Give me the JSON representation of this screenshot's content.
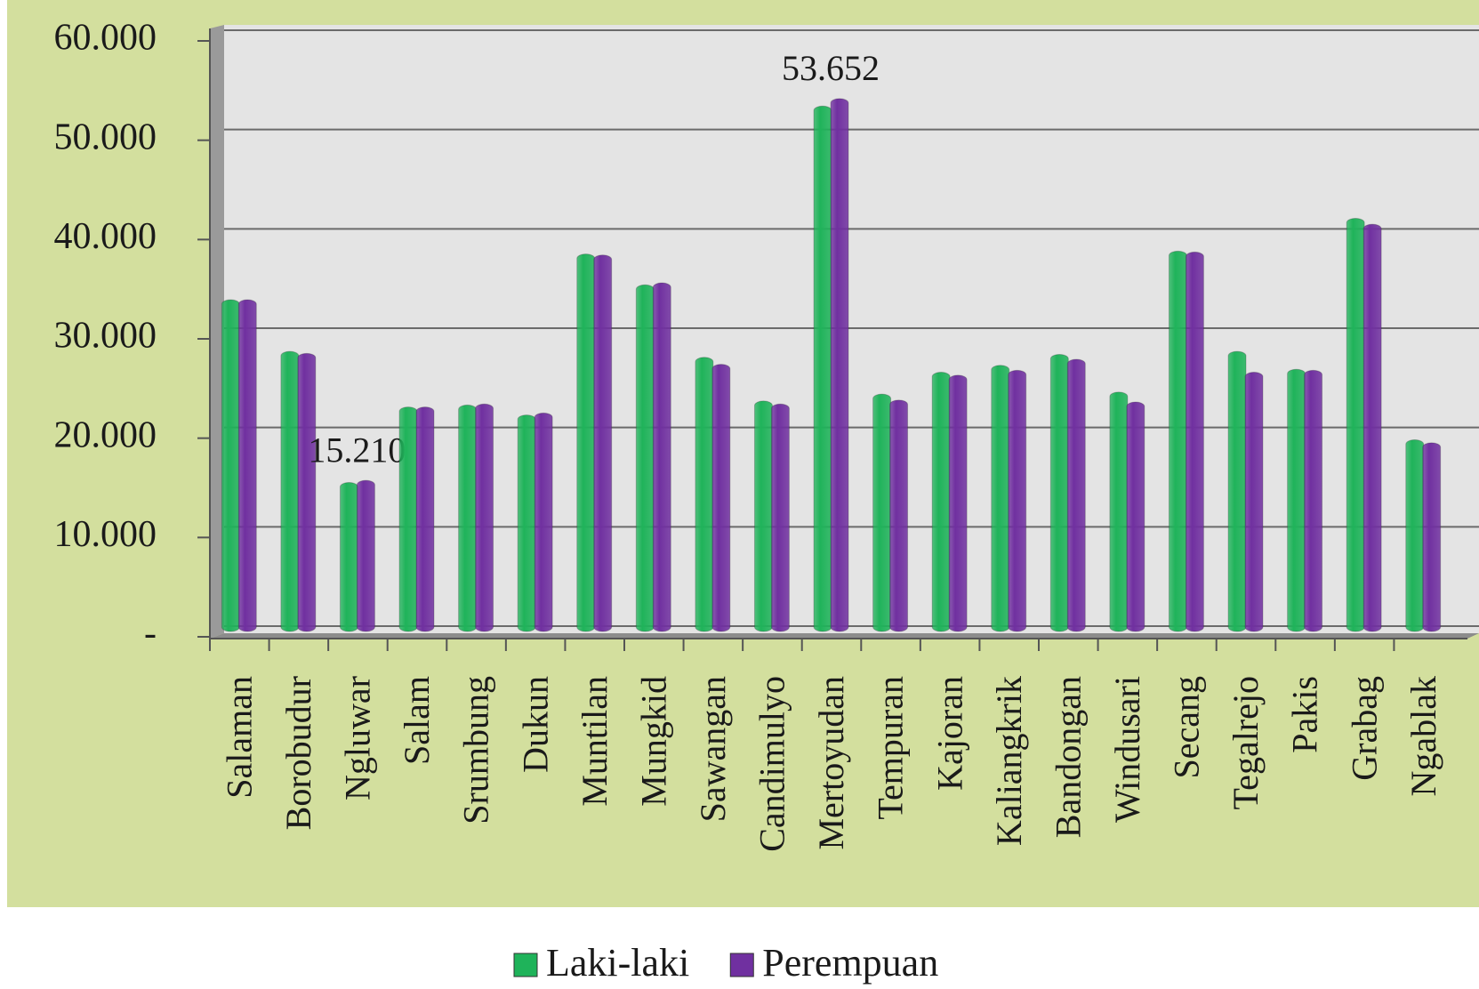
{
  "chart_data": {
    "type": "bar",
    "categories": [
      "Salaman",
      "Borobudur",
      "Ngluwar",
      "Salam",
      "Srumbung",
      "Dukun",
      "Muntilan",
      "Mungkid",
      "Sawangan",
      "Candimulyo",
      "Mertoyudan",
      "Tempuran",
      "Kajoran",
      "Kaliangkrik",
      "Bandongan",
      "Windusari",
      "Secang",
      "Tegalrejo",
      "Pakis",
      "Grabag",
      "Ngablak"
    ],
    "series": [
      {
        "name": "Laki-laki",
        "color": "#1fb35a",
        "values": [
          33400,
          28200,
          15000,
          22600,
          22800,
          21800,
          38000,
          34900,
          27600,
          23200,
          52900,
          23900,
          26100,
          26800,
          27900,
          24100,
          38300,
          28200,
          26400,
          41600,
          19300
        ],
        "value_labels": [
          null,
          null,
          null,
          null,
          null,
          null,
          null,
          null,
          null,
          null,
          null,
          null,
          null,
          null,
          null,
          null,
          null,
          null,
          null,
          null,
          null
        ]
      },
      {
        "name": "Perempuan",
        "color": "#7030a0",
        "values": [
          33400,
          28000,
          15210,
          22600,
          22900,
          22000,
          37900,
          35100,
          26900,
          22900,
          53652,
          23300,
          25800,
          26300,
          27400,
          23100,
          38200,
          26100,
          26300,
          41000,
          19000
        ],
        "value_labels": [
          null,
          null,
          "15.210",
          null,
          null,
          null,
          null,
          null,
          null,
          null,
          "53.652",
          null,
          null,
          null,
          null,
          null,
          null,
          null,
          null,
          null,
          null
        ]
      }
    ],
    "ylim": [
      0,
      60000
    ],
    "yticks": [
      {
        "value": 0,
        "label": "-"
      },
      {
        "value": 10000,
        "label": "10.000"
      },
      {
        "value": 20000,
        "label": "20.000"
      },
      {
        "value": 30000,
        "label": "30.000"
      },
      {
        "value": 40000,
        "label": "40.000"
      },
      {
        "value": 50000,
        "label": "50.000"
      },
      {
        "value": 60000,
        "label": "60.000"
      }
    ],
    "grid": true,
    "legend": "bottom"
  }
}
